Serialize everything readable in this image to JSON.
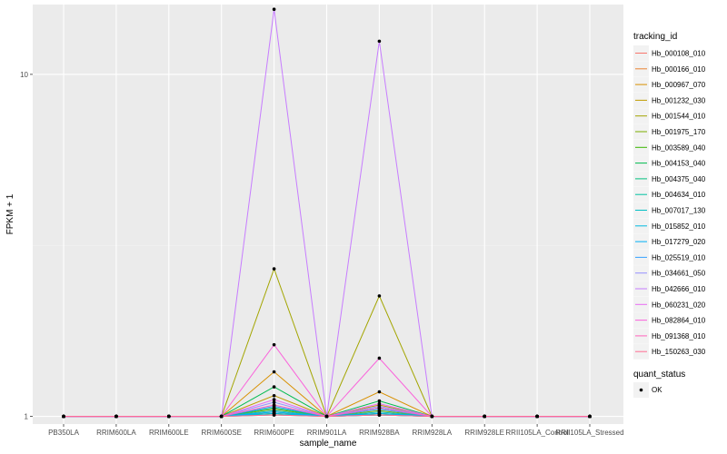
{
  "chart_data": {
    "type": "line",
    "xlabel": "sample_name",
    "ylabel": "FPKM + 1",
    "y_scale": "log10",
    "ylim": [
      0.95,
      16
    ],
    "y_ticks": [
      1,
      10
    ],
    "grid": true,
    "legend_position": "right",
    "legend_title": "tracking_id",
    "categories": [
      "PB350LA",
      "RRIM600LA",
      "RRIM600LE",
      "RRIM600SE",
      "RRIM600PE",
      "RRIM901LA",
      "RRIM928BA",
      "RRIM928LA",
      "RRIM928LE",
      "RRII105LA_Control",
      "RRII105LA_Stressed"
    ],
    "series": [
      {
        "name": "Hb_000108_010",
        "color": "#F8766D",
        "values": [
          1,
          1,
          1,
          1,
          1.02,
          1,
          1.01,
          1,
          1,
          1,
          1
        ]
      },
      {
        "name": "Hb_000166_010",
        "color": "#EA8331",
        "values": [
          1,
          1,
          1,
          1,
          1.03,
          1,
          1.02,
          1,
          1,
          1,
          1
        ]
      },
      {
        "name": "Hb_000967_070",
        "color": "#D89000",
        "values": [
          1,
          1,
          1,
          1,
          1.35,
          1,
          1.18,
          1,
          1,
          1,
          1
        ]
      },
      {
        "name": "Hb_001232_030",
        "color": "#C09B00",
        "values": [
          1,
          1,
          1,
          1,
          1.15,
          1,
          1.08,
          1,
          1,
          1,
          1
        ]
      },
      {
        "name": "Hb_001544_010",
        "color": "#A3A500",
        "values": [
          1,
          1,
          1,
          1,
          2.7,
          1,
          2.25,
          1,
          1,
          1,
          1
        ]
      },
      {
        "name": "Hb_001975_170",
        "color": "#7CAE00",
        "values": [
          1,
          1,
          1,
          1,
          1.05,
          1,
          1.04,
          1,
          1,
          1,
          1
        ]
      },
      {
        "name": "Hb_003589_040",
        "color": "#39B600",
        "values": [
          1,
          1,
          1,
          1,
          1.02,
          1,
          1.02,
          1,
          1,
          1,
          1
        ]
      },
      {
        "name": "Hb_004153_040",
        "color": "#00BB4E",
        "values": [
          1,
          1,
          1,
          1,
          1.22,
          1,
          1.11,
          1,
          1,
          1,
          1
        ]
      },
      {
        "name": "Hb_004375_040",
        "color": "#00BF7D",
        "values": [
          1,
          1,
          1,
          1,
          1.06,
          1,
          1.06,
          1,
          1,
          1,
          1
        ]
      },
      {
        "name": "Hb_004634_010",
        "color": "#00C1A3",
        "values": [
          1,
          1,
          1,
          1,
          1.01,
          1,
          1.01,
          1,
          1,
          1,
          1
        ]
      },
      {
        "name": "Hb_007017_130",
        "color": "#00BFC4",
        "values": [
          1,
          1,
          1,
          1,
          1.04,
          1,
          1.03,
          1,
          1,
          1,
          1
        ]
      },
      {
        "name": "Hb_015852_010",
        "color": "#00BAE0",
        "values": [
          1,
          1,
          1,
          1,
          1.02,
          1,
          1.01,
          1,
          1,
          1,
          1
        ]
      },
      {
        "name": "Hb_017279_020",
        "color": "#00B0F6",
        "values": [
          1,
          1,
          1,
          1,
          1.03,
          1,
          1.02,
          1,
          1,
          1,
          1
        ]
      },
      {
        "name": "Hb_025519_010",
        "color": "#35A2FF",
        "values": [
          1,
          1,
          1,
          1,
          1.07,
          1,
          1.05,
          1,
          1,
          1,
          1
        ]
      },
      {
        "name": "Hb_034661_050",
        "color": "#9590FF",
        "values": [
          1,
          1,
          1,
          1,
          1.1,
          1,
          1.07,
          1,
          1,
          1,
          1
        ]
      },
      {
        "name": "Hb_042666_010",
        "color": "#C77CFF",
        "values": [
          1,
          1,
          1,
          1,
          15.5,
          1,
          12.5,
          1,
          1,
          1,
          1
        ]
      },
      {
        "name": "Hb_060231_020",
        "color": "#E76BF3",
        "values": [
          1,
          1,
          1,
          1,
          1.12,
          1,
          1.09,
          1,
          1,
          1,
          1
        ]
      },
      {
        "name": "Hb_082864_010",
        "color": "#FA62DB",
        "values": [
          1,
          1,
          1,
          1,
          1.62,
          1,
          1.48,
          1,
          1,
          1,
          1
        ]
      },
      {
        "name": "Hb_091368_010",
        "color": "#FF62BC",
        "values": [
          1,
          1,
          1,
          1,
          1.08,
          1,
          1.06,
          1,
          1,
          1,
          1
        ]
      },
      {
        "name": "Hb_150263_030",
        "color": "#FF6C91",
        "values": [
          1,
          1,
          1,
          1,
          1.01,
          1,
          1.01,
          1,
          1,
          1,
          1
        ]
      }
    ],
    "point_legend": {
      "title": "quant_status",
      "label": "OK"
    }
  }
}
